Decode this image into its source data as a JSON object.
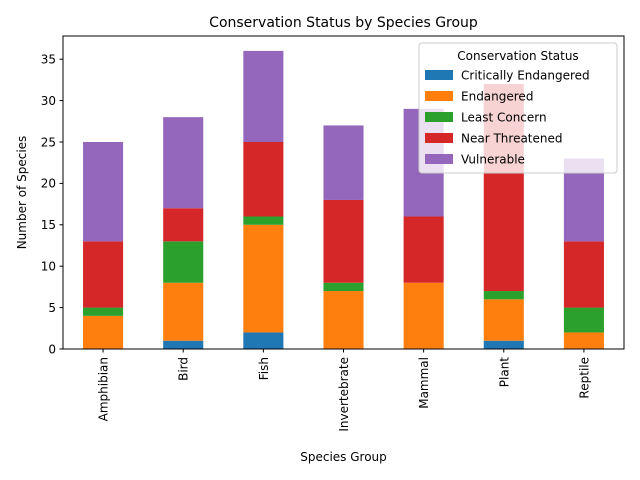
{
  "chart_data": {
    "type": "bar",
    "stacked": true,
    "title": "Conservation Status by Species Group",
    "xlabel": "Species Group",
    "ylabel": "Number of Species",
    "categories": [
      "Amphibian",
      "Bird",
      "Fish",
      "Invertebrate",
      "Mammal",
      "Plant",
      "Reptile"
    ],
    "ylim": [
      0,
      37.8
    ],
    "yticks": [
      0,
      5,
      10,
      15,
      20,
      25,
      30,
      35
    ],
    "grid": false,
    "legend": {
      "title": "Conservation Status",
      "placement": "top-right"
    },
    "series": [
      {
        "name": "Critically Endangered",
        "color": "#1f77b4",
        "values": [
          0,
          1,
          2,
          0,
          0,
          1,
          0
        ]
      },
      {
        "name": "Endangered",
        "color": "#ff7f0e",
        "values": [
          4,
          7,
          13,
          7,
          8,
          5,
          2
        ]
      },
      {
        "name": "Least Concern",
        "color": "#2ca02c",
        "values": [
          1,
          5,
          1,
          1,
          0,
          1,
          3
        ]
      },
      {
        "name": "Near Threatened",
        "color": "#d62728",
        "values": [
          8,
          4,
          9,
          10,
          8,
          25,
          8
        ]
      },
      {
        "name": "Vulnerable",
        "color": "#9467bd",
        "values": [
          12,
          11,
          11,
          9,
          13,
          0,
          10
        ]
      }
    ]
  }
}
